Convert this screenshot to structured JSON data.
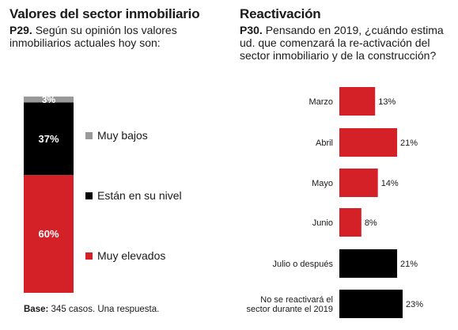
{
  "left": {
    "title": "Valores del sector inmobiliario",
    "question_num": "P29.",
    "question_text": "Según su opinión los valores inmobiliarios actuales hoy son:",
    "base_label": "Base:",
    "base_text": "345 casos. Una respuesta."
  },
  "right": {
    "title": "Reactivación",
    "question_num": "P30.",
    "question_text": "Pensando en 2019, ¿cuándo estima ud. que comenzará la re-activación del sector inmobiliario y de la construcción?"
  },
  "chart_data": [
    {
      "type": "bar",
      "stacked": true,
      "title": "Valores del sector inmobiliario",
      "series": [
        {
          "name": "Muy elevados",
          "value": 60,
          "label": "60%",
          "color": "#d42027"
        },
        {
          "name": "Están en su nivel",
          "value": 37,
          "label": "37%",
          "color": "#000000"
        },
        {
          "name": "Muy bajos",
          "value": 3,
          "label": "3%",
          "color": "#999999"
        }
      ],
      "ylim": [
        0,
        100
      ],
      "legend_placement": "right"
    },
    {
      "type": "bar",
      "orientation": "horizontal",
      "title": "Reactivación",
      "categories": [
        "Marzo",
        "Abril",
        "Mayo",
        "Junio",
        "Julio o después",
        "No se reactivará el sector durante el 2019"
      ],
      "values": [
        13,
        21,
        14,
        8,
        21,
        23
      ],
      "labels": [
        "13%",
        "21%",
        "14%",
        "8%",
        "21%",
        "23%"
      ],
      "colors": [
        "#d42027",
        "#d42027",
        "#d42027",
        "#d42027",
        "#000000",
        "#000000"
      ]
    }
  ]
}
